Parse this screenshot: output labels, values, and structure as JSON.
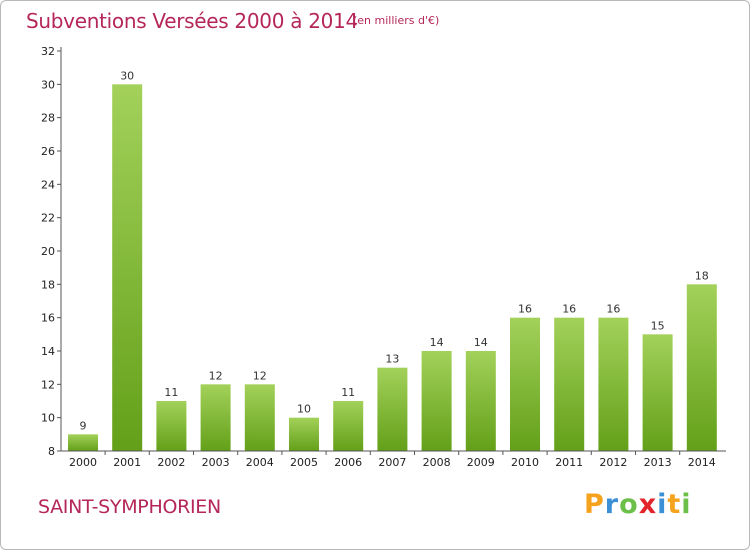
{
  "header": {
    "title": "Subventions Versées 2000 à 2014",
    "subtitle": "(en milliers d'€)"
  },
  "footer": {
    "commune": "SAINT-SYMPHORIEN",
    "logo": [
      "P",
      "r",
      "o",
      "x",
      "i",
      "t",
      "i"
    ]
  },
  "chart_data": {
    "type": "bar",
    "categories": [
      "2000",
      "2001",
      "2002",
      "2003",
      "2004",
      "2005",
      "2006",
      "2007",
      "2008",
      "2009",
      "2010",
      "2011",
      "2012",
      "2013",
      "2014"
    ],
    "values": [
      9,
      30,
      11,
      12,
      12,
      10,
      11,
      13,
      14,
      14,
      16,
      16,
      16,
      15,
      18
    ],
    "ylim": [
      8,
      32
    ],
    "yticks": [
      8,
      10,
      12,
      14,
      16,
      18,
      20,
      22,
      24,
      26,
      28,
      30,
      32
    ],
    "grid": false,
    "legend": "none",
    "bar_color_top": "#a3d15a",
    "bar_color_bottom": "#63a019",
    "axis_color": "#555555"
  }
}
